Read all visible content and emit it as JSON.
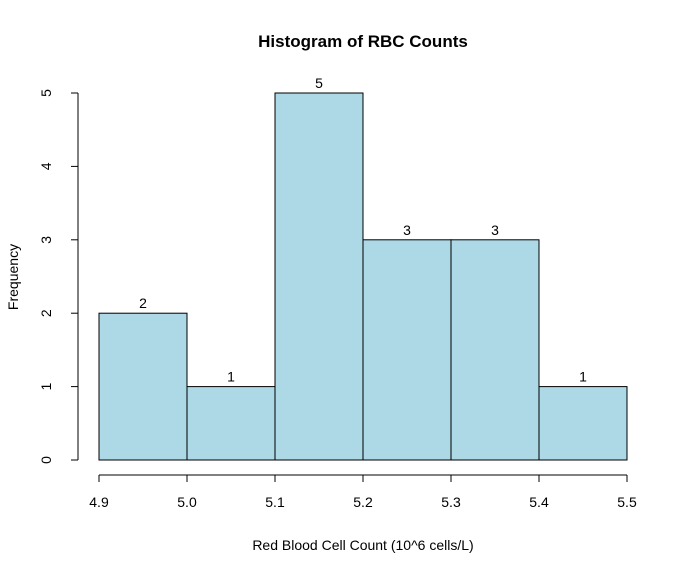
{
  "chart_data": {
    "type": "bar",
    "title": "Histogram of RBC Counts",
    "xlabel": "Red Blood Cell Count (10^6 cells/L)",
    "ylabel": "Frequency",
    "bins": [
      {
        "start": 4.9,
        "end": 5.0,
        "count": 2
      },
      {
        "start": 5.0,
        "end": 5.1,
        "count": 1
      },
      {
        "start": 5.1,
        "end": 5.2,
        "count": 5
      },
      {
        "start": 5.2,
        "end": 5.3,
        "count": 3
      },
      {
        "start": 5.3,
        "end": 5.4,
        "count": 3
      },
      {
        "start": 5.4,
        "end": 5.5,
        "count": 1
      }
    ],
    "x_ticks": [
      "4.9",
      "5.0",
      "5.1",
      "5.2",
      "5.3",
      "5.4",
      "5.5"
    ],
    "y_ticks": [
      "0",
      "1",
      "2",
      "3",
      "4",
      "5"
    ],
    "xlim": [
      4.9,
      5.5
    ],
    "ylim": [
      0,
      5
    ],
    "bar_color": "#add8e6",
    "grid": false
  }
}
